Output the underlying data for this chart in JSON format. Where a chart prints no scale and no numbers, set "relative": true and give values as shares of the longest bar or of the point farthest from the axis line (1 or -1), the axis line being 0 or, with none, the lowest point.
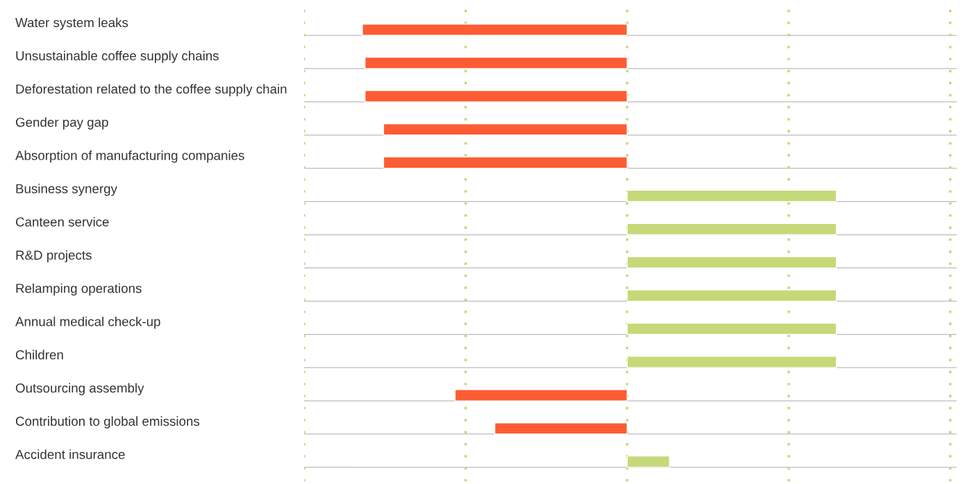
{
  "chart_data": {
    "type": "bar",
    "orientation": "horizontal",
    "relative": true,
    "categories": [
      "Water system leaks",
      "Unsustainable coffee supply chains",
      "Deforestation related to the coffee supply chain",
      "Gender pay gap",
      "Absorption of manufacturing companies",
      "Business synergy",
      "Canteen service",
      "R&D projects",
      "Relamping operations",
      "Annual medical check-up",
      "Children",
      "Outsourcing assembly",
      "Contribution to global emissions",
      "Accident insurance"
    ],
    "values": [
      -1,
      -0.99,
      -0.99,
      -0.92,
      -0.92,
      0.79,
      0.79,
      0.79,
      0.79,
      0.79,
      0.79,
      -0.65,
      -0.5,
      0.16
    ],
    "colors": [
      "#fc5c33",
      "#fc5c33",
      "#fc5c33",
      "#fc5c33",
      "#fc5c33",
      "#c5d978",
      "#c5d978",
      "#c5d978",
      "#c5d978",
      "#c5d978",
      "#c5d978",
      "#fc5c33",
      "#fc5c33",
      "#c5d978"
    ],
    "ref_lines": [
      {
        "axis": "x",
        "value": -1.22,
        "color": "#c5d978",
        "line_style": "dotted"
      },
      {
        "axis": "x",
        "value": -0.61,
        "color": "#c5d978",
        "line_style": "dotted"
      },
      {
        "axis": "x",
        "value": 0,
        "color": "#c5d978",
        "line_style": "dotted"
      },
      {
        "axis": "x",
        "value": 0.61,
        "color": "#c5d978",
        "line_style": "dotted"
      },
      {
        "axis": "x",
        "value": 1.22,
        "color": "#c5d978",
        "line_style": "dotted"
      }
    ],
    "grid": "y",
    "legend": false
  }
}
